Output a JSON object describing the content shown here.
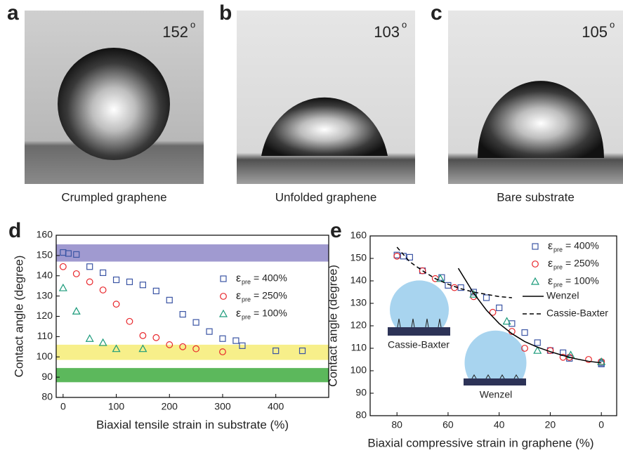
{
  "images": [
    {
      "label": "a",
      "angle": "152",
      "degree": "o",
      "caption": "Crumpled graphene"
    },
    {
      "label": "b",
      "angle": "103",
      "degree": "o",
      "caption": "Unfolded graphene"
    },
    {
      "label": "c",
      "angle": "105",
      "degree": "o",
      "caption": "Bare substrate"
    }
  ],
  "chart_data": [
    {
      "type": "scatter",
      "panel_label": "d",
      "x_label": "Biaxial tensile strain in substrate (%)",
      "y_label": "Contact angle (degree)",
      "xlim": [
        -13,
        499.5
      ],
      "ylim": [
        80,
        160
      ],
      "xticks": [
        0,
        100,
        200,
        300,
        400
      ],
      "yticks": [
        80,
        90,
        100,
        110,
        120,
        130,
        140,
        150,
        160
      ],
      "legend_symbol": "ε",
      "legend_subscript": "pre",
      "bands": [
        {
          "from": 147,
          "to": 155.5,
          "color": "#a09ad0"
        },
        {
          "from": 98.5,
          "to": 106,
          "color": "#f7ef8a"
        },
        {
          "from": 87.5,
          "to": 94.5,
          "color": "#5cb85c"
        }
      ],
      "series": [
        {
          "name": "= 400%",
          "color": "#3b55a4",
          "marker": "square",
          "x": [
            0,
            10,
            25,
            50,
            75,
            100,
            125,
            150,
            175,
            200,
            225,
            250,
            275,
            300,
            325,
            337,
            400,
            450
          ],
          "values": [
            151.5,
            151,
            150.5,
            144.5,
            141.5,
            138,
            137,
            135.5,
            132.5,
            128,
            121,
            117,
            112.5,
            109,
            108,
            105.5,
            103,
            103
          ]
        },
        {
          "name": "= 250%",
          "color": "#e8252a",
          "marker": "circle",
          "x": [
            0,
            25,
            50,
            75,
            100,
            125,
            150,
            175,
            200,
            225,
            250,
            300
          ],
          "values": [
            144.5,
            141,
            137,
            133,
            126,
            117.5,
            110.5,
            109.5,
            106,
            105,
            104,
            102.5
          ]
        },
        {
          "name": "= 100%",
          "color": "#1a9a7a",
          "marker": "triangle",
          "x": [
            0,
            25,
            50,
            75,
            100,
            150
          ],
          "values": [
            134,
            122.5,
            109,
            107,
            104,
            104
          ]
        }
      ]
    },
    {
      "type": "scatter",
      "panel_label": "e",
      "x_label": "Biaxial compressive strain in graphene (%)",
      "y_label": "Contact angle (degree)",
      "xlim": [
        90.5,
        -6
      ],
      "ylim": [
        80,
        160
      ],
      "xticks": [
        80,
        60,
        40,
        20,
        0
      ],
      "yticks": [
        80,
        90,
        100,
        110,
        120,
        130,
        140,
        150,
        160
      ],
      "legend_symbol": "ε",
      "legend_subscript": "pre",
      "insets": [
        "Cassie-Baxter",
        "Wenzel"
      ],
      "series": [
        {
          "name": "= 400%",
          "color": "#3b55a4",
          "marker": "square",
          "x": [
            80,
            77.5,
            75,
            70,
            62.5,
            60,
            55,
            50,
            45,
            40,
            35,
            30,
            25,
            20,
            15,
            12.5,
            0,
            0
          ],
          "values": [
            151.5,
            151,
            150.5,
            144.5,
            141.5,
            138,
            137,
            135,
            132.5,
            128,
            121,
            117,
            112.5,
            109,
            108,
            105.5,
            103,
            103.5
          ]
        },
        {
          "name": "= 250%",
          "color": "#e8252a",
          "marker": "circle",
          "x": [
            80,
            70,
            65,
            57.5,
            50,
            42.5,
            35,
            30,
            20,
            15,
            12.5,
            5,
            0
          ],
          "values": [
            151,
            144.5,
            141,
            137,
            133,
            126,
            117.5,
            110,
            109,
            106,
            106,
            105,
            104
          ]
        },
        {
          "name": "= 100%",
          "color": "#1a9a7a",
          "marker": "triangle",
          "x": [
            63,
            50,
            37,
            25,
            12,
            0
          ],
          "values": [
            141,
            134,
            122,
            109,
            107,
            104
          ]
        },
        {
          "name": "Wenzel",
          "color": "#000000",
          "marker": "solid",
          "x": [
            56,
            50,
            45,
            40,
            35,
            30,
            25,
            20,
            15,
            10,
            5,
            0
          ],
          "values": [
            145.6,
            134.5,
            127,
            121,
            116.5,
            113,
            110.5,
            108.5,
            106.8,
            105.3,
            104.2,
            103.5
          ]
        },
        {
          "name": "Cassie-Baxter",
          "color": "#000000",
          "marker": "dashed",
          "x": [
            80,
            75,
            70,
            65,
            60,
            55,
            50,
            45,
            40,
            35
          ],
          "values": [
            155,
            148.5,
            144.5,
            141,
            138.5,
            136.5,
            135,
            134,
            133,
            132.5
          ]
        }
      ]
    }
  ]
}
